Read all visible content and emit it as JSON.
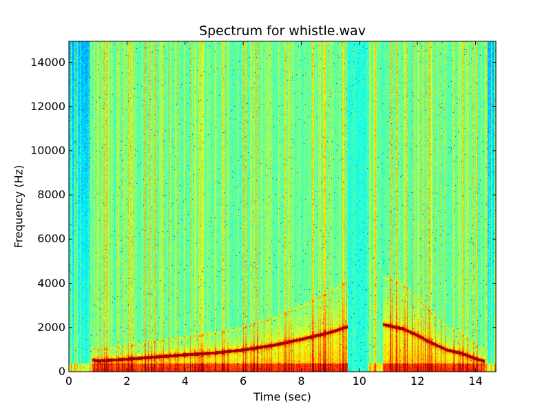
{
  "chart_data": {
    "type": "heatmap",
    "subtype": "spectrogram",
    "title": "Spectrum for whistle.wav",
    "xlabel": "Time (sec)",
    "ylabel": "Frequency (Hz)",
    "xlim": [
      0,
      14.7
    ],
    "ylim": [
      0,
      14950
    ],
    "xticks": [
      0,
      2,
      4,
      6,
      8,
      10,
      12,
      14
    ],
    "yticks": [
      0,
      2000,
      4000,
      6000,
      8000,
      10000,
      12000,
      14000
    ],
    "colormap": "jet",
    "grid": false,
    "fundamental_contour": {
      "time": [
        0.8,
        1.0,
        2.0,
        3.0,
        4.0,
        5.0,
        6.0,
        7.0,
        8.0,
        9.0,
        9.6,
        10.8,
        11.5,
        12.0,
        12.5,
        13.0,
        13.5,
        14.0,
        14.3
      ],
      "freq": [
        550,
        500,
        580,
        680,
        780,
        860,
        1000,
        1200,
        1480,
        1800,
        2050,
        2150,
        1950,
        1650,
        1300,
        1000,
        850,
        600,
        480
      ]
    },
    "gap_interval_sec": [
      9.6,
      10.3
    ]
  }
}
